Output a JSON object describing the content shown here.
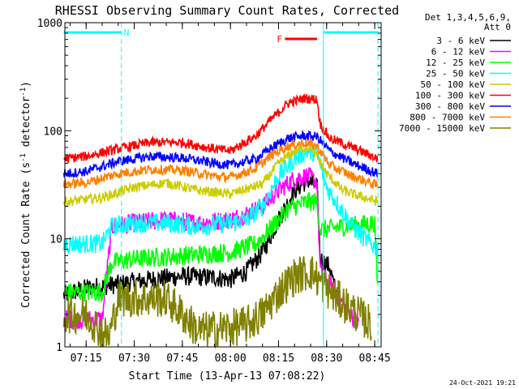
{
  "chart_data": {
    "type": "line",
    "title": "RHESSI Observing Summary Count Rates, Corrected",
    "xlabel": "Start Time (13-Apr-13 07:08:22)",
    "ylabel_main": "Corrected Count Rate (s",
    "ylabel_sup1": "-1",
    "ylabel_mid": " detector",
    "ylabel_sup2": "-1",
    "ylabel_end": ")",
    "y_scale": "log",
    "ylim": [
      1,
      1000
    ],
    "xlim": [
      "07:08:22",
      "08:47:00"
    ],
    "y_ticks": [
      {
        "value": 1,
        "label": "1"
      },
      {
        "value": 10,
        "label": "10"
      },
      {
        "value": 100,
        "label": "100"
      },
      {
        "value": 1000,
        "label": "1000"
      }
    ],
    "x_ticks": [
      "07:15",
      "07:30",
      "07:45",
      "08:00",
      "08:15",
      "08:30",
      "08:45"
    ],
    "legend_header": [
      "Det 1,3,4,5,6,9,",
      "Att 0"
    ],
    "legend_placement": "outside-right",
    "series": [
      {
        "name": "3 - 6 keV",
        "color": "#000000",
        "points": [
          [
            "07:08",
            "3.0"
          ],
          [
            "07:15",
            "3.5"
          ],
          [
            "07:25",
            "3.8"
          ],
          [
            "07:35",
            "4.2"
          ],
          [
            "07:45",
            "4.5"
          ],
          [
            "07:55",
            "4.4"
          ],
          [
            "08:00",
            "4.2"
          ],
          [
            "08:05",
            "5.0"
          ],
          [
            "08:10",
            "7.5"
          ],
          [
            "08:15",
            "15"
          ],
          [
            "08:20",
            "28"
          ],
          [
            "08:24",
            "35"
          ],
          [
            "08:27",
            "30"
          ],
          [
            "08:28",
            "6.5"
          ],
          [
            "08:31",
            "5.5"
          ],
          [
            "08:33",
            "3.0"
          ]
        ]
      },
      {
        "name": "6 - 12 keV",
        "color": "#ff00ff",
        "points": [
          [
            "07:08",
            "1.8"
          ],
          [
            "07:20",
            "1.8"
          ],
          [
            "07:23",
            "13"
          ],
          [
            "07:30",
            "14"
          ],
          [
            "07:40",
            "15"
          ],
          [
            "07:50",
            "14"
          ],
          [
            "08:00",
            "15"
          ],
          [
            "08:05",
            "17"
          ],
          [
            "08:10",
            "20"
          ],
          [
            "08:15",
            "28"
          ],
          [
            "08:20",
            "36"
          ],
          [
            "08:24",
            "38"
          ],
          [
            "08:27",
            "34"
          ],
          [
            "08:28",
            "5"
          ],
          [
            "08:35",
            "2.5"
          ],
          [
            "08:40",
            "1.6"
          ]
        ]
      },
      {
        "name": "12 - 25 keV",
        "color": "#00ff00",
        "points": [
          [
            "07:08",
            "3.2"
          ],
          [
            "07:20",
            "3.2"
          ],
          [
            "07:23",
            "6"
          ],
          [
            "07:30",
            "6.5"
          ],
          [
            "07:45",
            "7"
          ],
          [
            "08:00",
            "7.5"
          ],
          [
            "08:08",
            "9"
          ],
          [
            "08:13",
            "13"
          ],
          [
            "08:18",
            "19"
          ],
          [
            "08:24",
            "22"
          ],
          [
            "08:27",
            "22"
          ],
          [
            "08:28",
            "12"
          ],
          [
            "08:35",
            "13"
          ],
          [
            "08:45",
            "14"
          ],
          [
            "08:46",
            "3"
          ]
        ]
      },
      {
        "name": "25 - 50 keV",
        "color": "#00ffff",
        "points": [
          [
            "07:08",
            "9"
          ],
          [
            "07:15",
            "9"
          ],
          [
            "07:20",
            "9"
          ],
          [
            "07:23",
            "13"
          ],
          [
            "07:30",
            "14"
          ],
          [
            "07:40",
            "14"
          ],
          [
            "07:50",
            "13"
          ],
          [
            "08:00",
            "14"
          ],
          [
            "08:05",
            "15"
          ],
          [
            "08:10",
            "20"
          ],
          [
            "08:15",
            "38"
          ],
          [
            "08:20",
            "55"
          ],
          [
            "08:24",
            "65"
          ],
          [
            "08:27",
            "62"
          ],
          [
            "08:30",
            "30"
          ],
          [
            "08:38",
            "13"
          ],
          [
            "08:42",
            "10"
          ],
          [
            "08:46",
            "8"
          ]
        ]
      },
      {
        "name": "50 - 100 keV",
        "color": "#cccc00",
        "points": [
          [
            "07:08",
            "22"
          ],
          [
            "07:20",
            "24"
          ],
          [
            "07:30",
            "30"
          ],
          [
            "07:40",
            "33"
          ],
          [
            "07:50",
            "28"
          ],
          [
            "08:00",
            "26"
          ],
          [
            "08:10",
            "32"
          ],
          [
            "08:15",
            "50"
          ],
          [
            "08:20",
            "65"
          ],
          [
            "08:25",
            "72"
          ],
          [
            "08:30",
            "40"
          ],
          [
            "08:35",
            "28"
          ],
          [
            "08:40",
            "25"
          ],
          [
            "08:46",
            "22"
          ]
        ]
      },
      {
        "name": "100 - 300 keV",
        "color": "#ff0000",
        "points": [
          [
            "07:08",
            "55"
          ],
          [
            "07:15",
            "58"
          ],
          [
            "07:25",
            "68"
          ],
          [
            "07:35",
            "78"
          ],
          [
            "07:45",
            "78"
          ],
          [
            "07:55",
            "68"
          ],
          [
            "08:00",
            "65"
          ],
          [
            "08:08",
            "90"
          ],
          [
            "08:13",
            "130"
          ],
          [
            "08:18",
            "180"
          ],
          [
            "08:23",
            "200"
          ],
          [
            "08:27",
            "195"
          ],
          [
            "08:28",
            "115"
          ],
          [
            "08:31",
            "85"
          ],
          [
            "08:38",
            "70"
          ],
          [
            "08:46",
            "55"
          ]
        ]
      },
      {
        "name": "300 - 800 keV",
        "color": "#0000ff",
        "points": [
          [
            "07:08",
            "40"
          ],
          [
            "07:15",
            "42"
          ],
          [
            "07:25",
            "52"
          ],
          [
            "07:35",
            "58"
          ],
          [
            "07:45",
            "56"
          ],
          [
            "07:55",
            "50"
          ],
          [
            "08:00",
            "48"
          ],
          [
            "08:08",
            "55"
          ],
          [
            "08:13",
            "70"
          ],
          [
            "08:18",
            "85"
          ],
          [
            "08:23",
            "90"
          ],
          [
            "08:27",
            "88"
          ],
          [
            "08:31",
            "65"
          ],
          [
            "08:38",
            "50"
          ],
          [
            "08:46",
            "40"
          ]
        ]
      },
      {
        "name": "800 - 7000 keV",
        "color": "#ff8000",
        "points": [
          [
            "07:08",
            "32"
          ],
          [
            "07:15",
            "33"
          ],
          [
            "07:25",
            "40"
          ],
          [
            "07:35",
            "44"
          ],
          [
            "07:45",
            "43"
          ],
          [
            "07:55",
            "38"
          ],
          [
            "08:00",
            "37"
          ],
          [
            "08:08",
            "45"
          ],
          [
            "08:13",
            "60"
          ],
          [
            "08:18",
            "72"
          ],
          [
            "08:23",
            "78"
          ],
          [
            "08:27",
            "72"
          ],
          [
            "08:31",
            "48"
          ],
          [
            "08:38",
            "38"
          ],
          [
            "08:46",
            "31"
          ]
        ]
      },
      {
        "name": "7000 - 15000 keV",
        "color": "#808000",
        "points": [
          [
            "07:08",
            "2.0"
          ],
          [
            "07:15",
            "2.0"
          ],
          [
            "07:22",
            "1.2"
          ],
          [
            "07:25",
            "2.8"
          ],
          [
            "07:40",
            "2.8"
          ],
          [
            "07:45",
            "2.0"
          ],
          [
            "07:50",
            "1.4"
          ],
          [
            "08:00",
            "1.5"
          ],
          [
            "08:05",
            "1.6"
          ],
          [
            "08:10",
            "2.0"
          ],
          [
            "08:15",
            "3.2"
          ],
          [
            "08:20",
            "4.5"
          ],
          [
            "08:25",
            "5.0"
          ],
          [
            "08:28",
            "4.0"
          ],
          [
            "08:32",
            "3.0"
          ],
          [
            "08:38",
            "2.2"
          ],
          [
            "08:44",
            "1.6"
          ]
        ]
      }
    ],
    "annotations": [
      {
        "label": "N",
        "color": "#00ffff",
        "type": "night",
        "x_start": "07:08",
        "x_end": "07:26"
      },
      {
        "label": "",
        "color": "#00ffff",
        "type": "night",
        "x_start": "08:29",
        "x_end": "08:46"
      },
      {
        "label": "F",
        "color": "#ff0000",
        "type": "flare",
        "x_start": "08:17",
        "x_end": "08:27"
      }
    ],
    "vertical_lines": [
      "07:26",
      "08:29",
      "08:46"
    ],
    "footer_date": "24-Oct-2021 19:21"
  }
}
